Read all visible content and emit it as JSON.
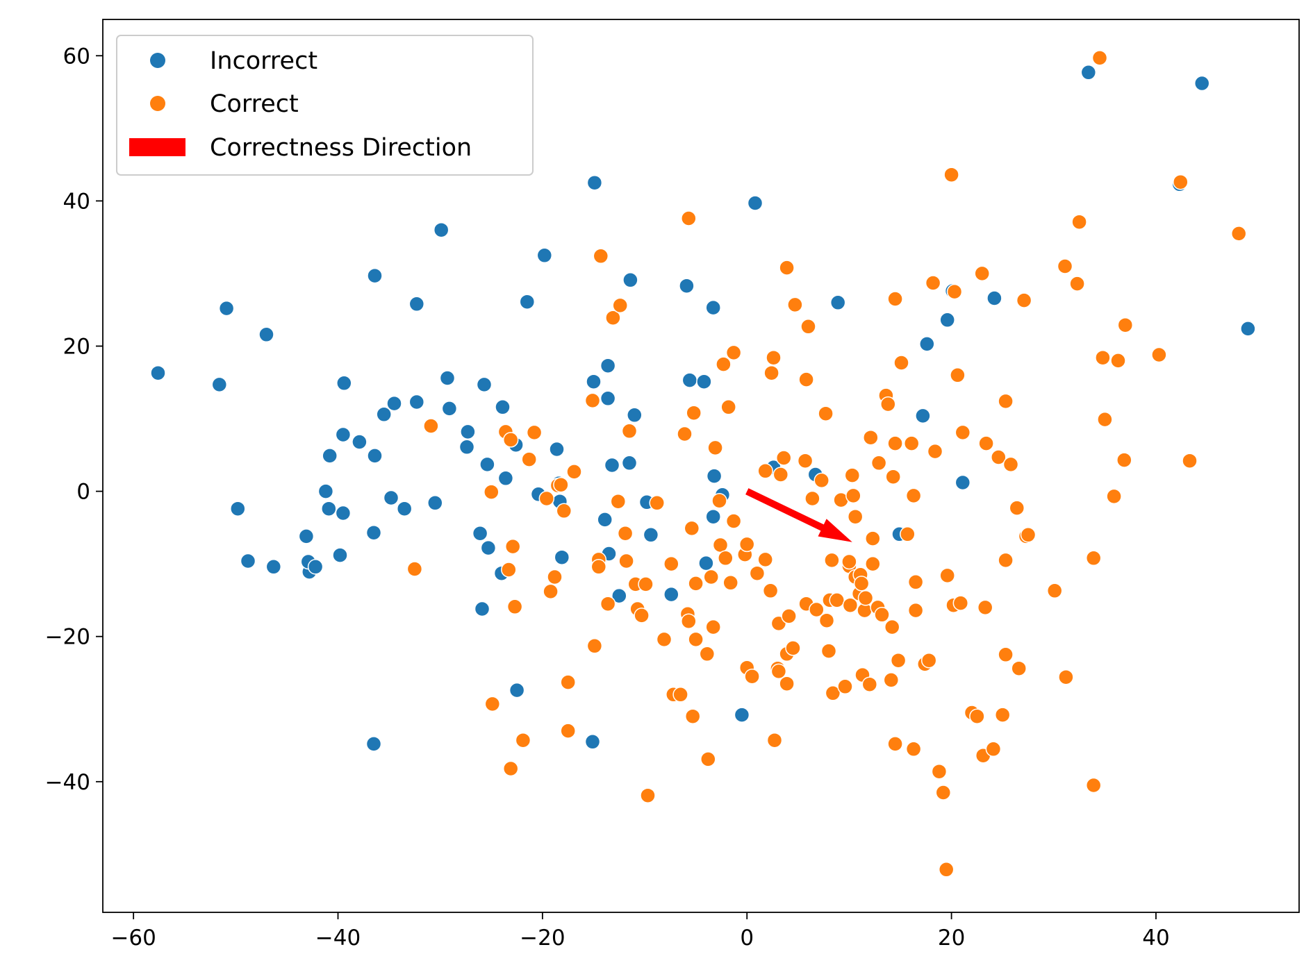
{
  "chart_data": {
    "type": "scatter",
    "title": "",
    "xlabel": "",
    "ylabel": "",
    "xlim": [
      -63,
      54
    ],
    "ylim": [
      -58,
      65
    ],
    "xticks": [
      -60,
      -40,
      -20,
      0,
      20,
      40
    ],
    "yticks": [
      -40,
      -20,
      0,
      20,
      40,
      60
    ],
    "xtick_labels": [
      "−60",
      "−40",
      "−20",
      "0",
      "20",
      "40"
    ],
    "ytick_labels": [
      "−40",
      "−20",
      "0",
      "20",
      "40",
      "60"
    ],
    "grid": false,
    "legend_position": "top-left",
    "legend": [
      {
        "label": "Incorrect",
        "kind": "marker",
        "color": "#1f77b4"
      },
      {
        "label": "Correct",
        "kind": "marker",
        "color": "#ff7f0e"
      },
      {
        "label": "Correctness Direction",
        "kind": "patch",
        "color": "#ff0000"
      }
    ],
    "series": [
      {
        "name": "Incorrect",
        "color": "#1f77b4",
        "points": [
          [
            -57.6,
            16.3
          ],
          [
            -51.6,
            14.7
          ],
          [
            -50.9,
            25.2
          ],
          [
            -49.8,
            -2.4
          ],
          [
            -48.8,
            -9.6
          ],
          [
            -47,
            21.6
          ],
          [
            -46.3,
            -10.4
          ],
          [
            -43.1,
            -6.2
          ],
          [
            -42.8,
            -11.1
          ],
          [
            -42.9,
            -9.7
          ],
          [
            -42.2,
            -10.4
          ],
          [
            -41.2,
            0
          ],
          [
            -40.9,
            -2.4
          ],
          [
            -40.8,
            4.9
          ],
          [
            -39.8,
            -8.8
          ],
          [
            -39.5,
            -3
          ],
          [
            -39.4,
            14.9
          ],
          [
            -39.5,
            7.8
          ],
          [
            -37.9,
            6.8
          ],
          [
            -36.4,
            29.7
          ],
          [
            -36.4,
            4.9
          ],
          [
            -36.5,
            -5.7
          ],
          [
            -36.5,
            -34.8
          ],
          [
            -35.5,
            10.6
          ],
          [
            -34.8,
            -0.9
          ],
          [
            -34.5,
            12.1
          ],
          [
            -33.5,
            -2.4
          ],
          [
            -32.3,
            25.8
          ],
          [
            -32.3,
            12.3
          ],
          [
            -30.5,
            -1.6
          ],
          [
            -29.9,
            36
          ],
          [
            -29.3,
            15.6
          ],
          [
            -29.1,
            11.4
          ],
          [
            -27.3,
            8.2
          ],
          [
            -27.4,
            6.1
          ],
          [
            -26.1,
            -5.8
          ],
          [
            -25.9,
            -16.2
          ],
          [
            -25.7,
            14.7
          ],
          [
            -25.4,
            3.7
          ],
          [
            -25.3,
            -7.8
          ],
          [
            -23.9,
            11.6
          ],
          [
            -24,
            -11.3
          ],
          [
            -23.6,
            1.8
          ],
          [
            -22.6,
            6.4
          ],
          [
            -22.5,
            -27.4
          ],
          [
            -21.5,
            26.1
          ],
          [
            -20.4,
            -0.4
          ],
          [
            -19.8,
            32.5
          ],
          [
            -18.6,
            5.8
          ],
          [
            -18.4,
            1.1
          ],
          [
            -18.1,
            -9.1
          ],
          [
            -18.3,
            -1.4
          ],
          [
            -15.1,
            -34.5
          ],
          [
            -15,
            15.1
          ],
          [
            -14.9,
            42.5
          ],
          [
            -14.4,
            -9.4
          ],
          [
            -13.9,
            -3.9
          ],
          [
            -13.6,
            17.3
          ],
          [
            -13.6,
            12.8
          ],
          [
            -13.5,
            -8.6
          ],
          [
            -13.2,
            3.6
          ],
          [
            -12.5,
            -14.4
          ],
          [
            -11.4,
            29.1
          ],
          [
            -11.5,
            3.9
          ],
          [
            -11.0,
            10.5
          ],
          [
            -9.8,
            -1.5
          ],
          [
            -9.4,
            -6.0
          ],
          [
            -7.4,
            -14.2
          ],
          [
            -5.9,
            28.3
          ],
          [
            -5.6,
            15.3
          ],
          [
            -4.2,
            15.1
          ],
          [
            -4,
            -9.9
          ],
          [
            -3.3,
            -3.5
          ],
          [
            -3.2,
            2.1
          ],
          [
            -3.3,
            25.3
          ],
          [
            -2.4,
            -0.5
          ],
          [
            -0.5,
            -30.8
          ],
          [
            0.8,
            39.7
          ],
          [
            2.6,
            3.3
          ],
          [
            6.7,
            2.3
          ],
          [
            8.9,
            26
          ],
          [
            14.9,
            -5.9
          ],
          [
            17.2,
            10.4
          ],
          [
            17.6,
            20.3
          ],
          [
            19.6,
            23.6
          ],
          [
            20.1,
            27.6
          ],
          [
            21.1,
            1.2
          ],
          [
            24.2,
            26.6
          ],
          [
            33.4,
            57.7
          ],
          [
            42.3,
            42.3
          ],
          [
            44.5,
            56.2
          ],
          [
            49,
            22.4
          ]
        ]
      },
      {
        "name": "Correct",
        "color": "#ff7f0e",
        "points": [
          [
            -32.5,
            -10.7
          ],
          [
            -30.9,
            9
          ],
          [
            -25,
            -0.1
          ],
          [
            -24.9,
            -29.3
          ],
          [
            -23.6,
            8.2
          ],
          [
            -23.3,
            -10.8
          ],
          [
            -23.1,
            -38.2
          ],
          [
            -23.1,
            7.1
          ],
          [
            -22.9,
            -7.6
          ],
          [
            -22.7,
            -15.9
          ],
          [
            -21.9,
            -34.3
          ],
          [
            -21.3,
            4.4
          ],
          [
            -20.8,
            8.1
          ],
          [
            -19.6,
            -1
          ],
          [
            -19.2,
            -13.8
          ],
          [
            -18.8,
            -11.8
          ],
          [
            -18.5,
            0.8
          ],
          [
            -18.2,
            0.9
          ],
          [
            -17.9,
            -2.7
          ],
          [
            -17.5,
            -26.3
          ],
          [
            -17.5,
            -33
          ],
          [
            -16.9,
            2.7
          ],
          [
            -15.1,
            12.5
          ],
          [
            -14.9,
            -21.3
          ],
          [
            -14.5,
            -9.4
          ],
          [
            -14.5,
            -10.4
          ],
          [
            -14.3,
            32.4
          ],
          [
            -13.6,
            -15.5
          ],
          [
            -13.1,
            23.9
          ],
          [
            -12.6,
            -1.4
          ],
          [
            -12.4,
            25.6
          ],
          [
            -11.9,
            -5.8
          ],
          [
            -11.8,
            -9.6
          ],
          [
            -11.5,
            8.3
          ],
          [
            -10.9,
            -12.8
          ],
          [
            -10.7,
            -16.2
          ],
          [
            -10.3,
            -17.1
          ],
          [
            -9.9,
            -12.8
          ],
          [
            -9.7,
            -41.9
          ],
          [
            -8.8,
            -1.6
          ],
          [
            -8.1,
            -20.4
          ],
          [
            -7.4,
            -10
          ],
          [
            -7.2,
            -28
          ],
          [
            -6.5,
            -28
          ],
          [
            -6.1,
            7.9
          ],
          [
            -5.8,
            -16.9
          ],
          [
            -5.7,
            37.6
          ],
          [
            -5.7,
            -17.9
          ],
          [
            -5.4,
            -5.1
          ],
          [
            -5.3,
            -31
          ],
          [
            -5.2,
            10.8
          ],
          [
            -5,
            -12.7
          ],
          [
            -5,
            -20.4
          ],
          [
            -3.9,
            -22.4
          ],
          [
            -3.8,
            -36.9
          ],
          [
            -3.5,
            -11.8
          ],
          [
            -3.3,
            -18.7
          ],
          [
            -3.1,
            6
          ],
          [
            -2.7,
            -1.3
          ],
          [
            -2.6,
            -7.4
          ],
          [
            -2.3,
            17.5
          ],
          [
            -2.1,
            -9.2
          ],
          [
            -1.8,
            11.6
          ],
          [
            -1.6,
            -12.6
          ],
          [
            -1.3,
            19.1
          ],
          [
            -1.3,
            -4.1
          ],
          [
            -0.2,
            -8.7
          ],
          [
            0,
            -7.3
          ],
          [
            0,
            -24.3
          ],
          [
            0.5,
            -25.5
          ],
          [
            1,
            -11.3
          ],
          [
            1.8,
            -9.4
          ],
          [
            1.8,
            2.8
          ],
          [
            2.3,
            -13.7
          ],
          [
            2.4,
            16.3
          ],
          [
            2.6,
            18.4
          ],
          [
            2.7,
            -34.3
          ],
          [
            3,
            -24.4
          ],
          [
            3.1,
            -24.8
          ],
          [
            3.1,
            -18.2
          ],
          [
            3.3,
            2.3
          ],
          [
            3.6,
            4.6
          ],
          [
            3.9,
            -26.5
          ],
          [
            3.9,
            30.8
          ],
          [
            3.9,
            -22.4
          ],
          [
            4.1,
            -17.2
          ],
          [
            4.5,
            -21.6
          ],
          [
            4.7,
            25.7
          ],
          [
            5.7,
            4.2
          ],
          [
            5.8,
            15.4
          ],
          [
            5.8,
            -15.5
          ],
          [
            6,
            22.7
          ],
          [
            6.4,
            -1
          ],
          [
            6.8,
            -16.3
          ],
          [
            7.3,
            1.5
          ],
          [
            7.7,
            10.7
          ],
          [
            7.8,
            -17.8
          ],
          [
            8,
            -22
          ],
          [
            8.1,
            -15
          ],
          [
            8.3,
            -9.5
          ],
          [
            8.4,
            -27.8
          ],
          [
            8.8,
            -15
          ],
          [
            9.2,
            -1.2
          ],
          [
            9.6,
            -26.9
          ],
          [
            10,
            -10.3
          ],
          [
            10,
            -9.7
          ],
          [
            10.1,
            -15.7
          ],
          [
            10.3,
            2.2
          ],
          [
            10.4,
            -0.6
          ],
          [
            10.6,
            -3.5
          ],
          [
            10.6,
            -11.8
          ],
          [
            11,
            -14.1
          ],
          [
            11.1,
            -11.5
          ],
          [
            11.2,
            -12.7
          ],
          [
            11.3,
            -25.3
          ],
          [
            11.5,
            -16.4
          ],
          [
            11.6,
            -14.7
          ],
          [
            12,
            -26.6
          ],
          [
            12.1,
            7.4
          ],
          [
            12.3,
            -6.5
          ],
          [
            12.3,
            -10
          ],
          [
            12.8,
            -16
          ],
          [
            12.9,
            3.9
          ],
          [
            13.2,
            -17
          ],
          [
            13.6,
            13.2
          ],
          [
            13.8,
            12
          ],
          [
            14.1,
            -26
          ],
          [
            14.2,
            -18.7
          ],
          [
            14.3,
            2
          ],
          [
            14.5,
            6.6
          ],
          [
            14.5,
            26.5
          ],
          [
            14.5,
            -34.8
          ],
          [
            14.8,
            -23.3
          ],
          [
            15.1,
            17.7
          ],
          [
            15.7,
            -5.9
          ],
          [
            16.1,
            6.6
          ],
          [
            16.3,
            -35.5
          ],
          [
            16.3,
            -0.6
          ],
          [
            16.5,
            -12.5
          ],
          [
            16.5,
            -16.4
          ],
          [
            17.4,
            -23.8
          ],
          [
            17.8,
            -23.3
          ],
          [
            18.2,
            28.7
          ],
          [
            18.4,
            5.5
          ],
          [
            18.8,
            -38.6
          ],
          [
            19.2,
            -41.5
          ],
          [
            19.5,
            -52.1
          ],
          [
            19.6,
            -11.6
          ],
          [
            20,
            43.6
          ],
          [
            20.2,
            -15.7
          ],
          [
            20.3,
            27.5
          ],
          [
            20.6,
            16
          ],
          [
            20.9,
            -15.4
          ],
          [
            21.1,
            8.1
          ],
          [
            22,
            -30.5
          ],
          [
            22.5,
            -31
          ],
          [
            23,
            30
          ],
          [
            23.1,
            -36.4
          ],
          [
            23.3,
            -16
          ],
          [
            23.4,
            6.6
          ],
          [
            24.1,
            -35.5
          ],
          [
            24.6,
            4.7
          ],
          [
            25,
            -30.8
          ],
          [
            25.3,
            12.4
          ],
          [
            25.3,
            -9.5
          ],
          [
            25.3,
            -22.5
          ],
          [
            25.8,
            3.7
          ],
          [
            26.4,
            -2.3
          ],
          [
            26.6,
            -24.4
          ],
          [
            27.1,
            26.3
          ],
          [
            27.3,
            -6.2
          ],
          [
            27.5,
            -6
          ],
          [
            30.1,
            -13.7
          ],
          [
            31.1,
            31
          ],
          [
            31.2,
            -25.6
          ],
          [
            32.3,
            28.6
          ],
          [
            32.5,
            37.1
          ],
          [
            33.9,
            -9.2
          ],
          [
            33.9,
            -40.5
          ],
          [
            34.5,
            59.7
          ],
          [
            34.8,
            18.4
          ],
          [
            35,
            9.9
          ],
          [
            35.9,
            -0.7
          ],
          [
            36.3,
            18
          ],
          [
            36.9,
            4.3
          ],
          [
            37,
            22.9
          ],
          [
            40.3,
            18.8
          ],
          [
            42.4,
            42.6
          ],
          [
            43.3,
            4.2
          ],
          [
            48.1,
            35.5
          ]
        ]
      }
    ],
    "arrow": {
      "label": "Correctness Direction",
      "from": [
        0,
        0
      ],
      "to": [
        10.3,
        -7.0
      ],
      "color": "#ff0000"
    }
  }
}
